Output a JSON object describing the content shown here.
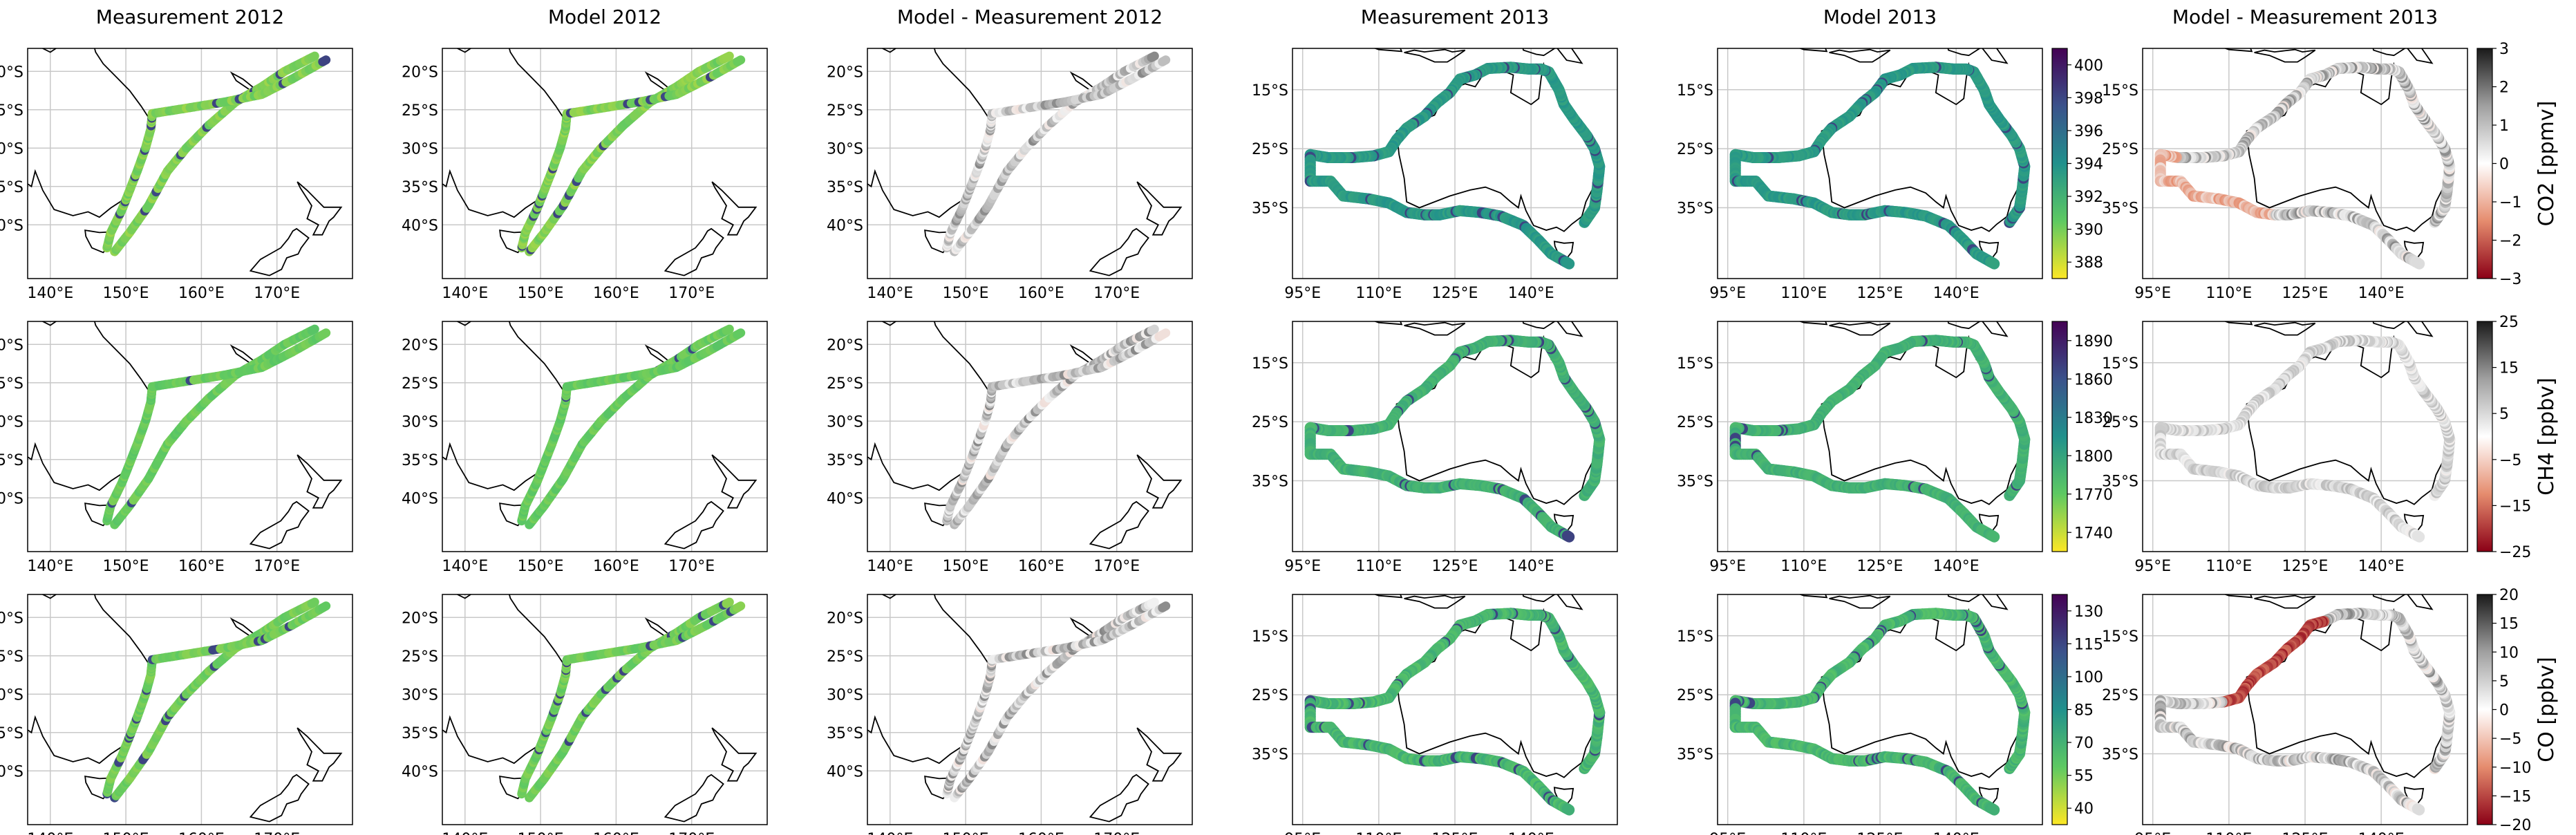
{
  "column_titles": [
    "Measurement 2012",
    "Model 2012",
    "Model - Measurement 2012",
    "Measurement 2013",
    "Model 2013",
    "Model - Measurement 2013"
  ],
  "map_2012": {
    "lon_ticks": [
      "140°E",
      "150°E",
      "160°E",
      "170°E"
    ],
    "lat_ticks": [
      "20°S",
      "25°S",
      "30°S",
      "35°S",
      "40°S"
    ]
  },
  "map_2013": {
    "lon_ticks": [
      "95°E",
      "110°E",
      "125°E",
      "140°E"
    ],
    "lat_ticks": [
      "15°S",
      "25°S",
      "35°S"
    ]
  },
  "rows": [
    {
      "species": "CO2",
      "abs_colorbar": {
        "ticks": [
          "388",
          "390",
          "392",
          "394",
          "396",
          "398",
          "400"
        ]
      },
      "diff_colorbar": {
        "ticks": [
          "−3",
          "−2",
          "−1",
          "0",
          "1",
          "2",
          "3"
        ],
        "label": "CO2 [ppmv]"
      }
    },
    {
      "species": "CH4",
      "abs_colorbar": {
        "ticks": [
          "1740",
          "1770",
          "1800",
          "1830",
          "1860",
          "1890"
        ]
      },
      "diff_colorbar": {
        "ticks": [
          "−25",
          "−15",
          "−5",
          "5",
          "15",
          "25"
        ],
        "label": "CH4 [ppbv]"
      }
    },
    {
      "species": "CO",
      "abs_colorbar": {
        "ticks": [
          "40",
          "55",
          "70",
          "85",
          "100",
          "115",
          "130"
        ]
      },
      "diff_colorbar": {
        "ticks": [
          "−20",
          "−15",
          "−10",
          "−5",
          "0",
          "5",
          "10",
          "15",
          "20"
        ],
        "label": "CO [ppbv]"
      }
    }
  ],
  "colors": {
    "viridis_low": "#fde725",
    "viridis_mid": "#21918c",
    "viridis_high": "#440154",
    "diff_negative": "#b2182b",
    "diff_zero": "#ffffff",
    "diff_positive": "#1a1a1a",
    "coastline": "#000000",
    "grid": "#cccccc"
  }
}
